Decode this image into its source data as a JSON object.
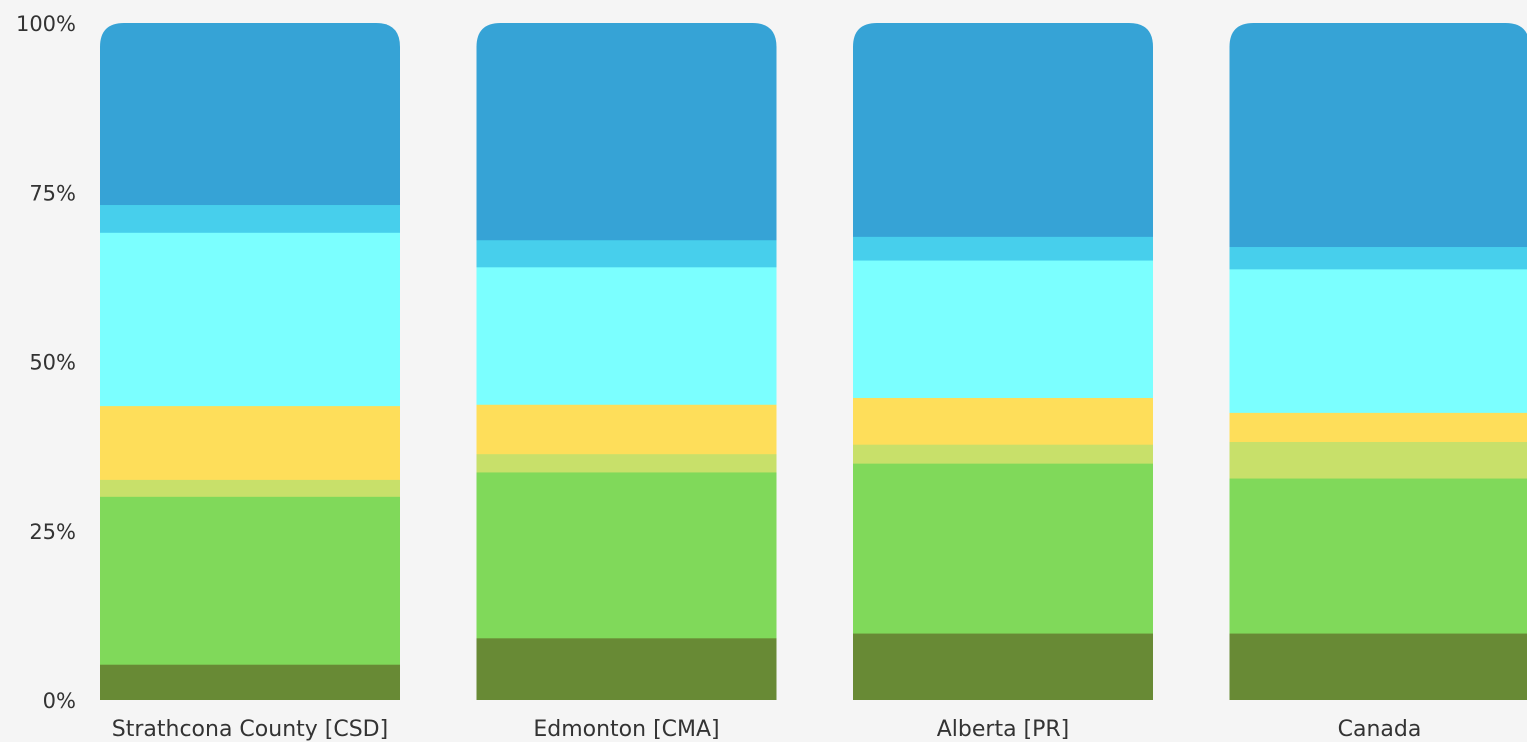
{
  "chart_data": {
    "type": "bar",
    "stacked": true,
    "orientation": "vertical",
    "normalized": true,
    "title": "",
    "xlabel": "",
    "ylabel": "",
    "ylim": [
      0,
      100
    ],
    "y_ticks": [
      {
        "value": 0,
        "label": "0%"
      },
      {
        "value": 25,
        "label": "25%"
      },
      {
        "value": 50,
        "label": "50%"
      },
      {
        "value": 75,
        "label": "75%"
      },
      {
        "value": 100,
        "label": "100%"
      }
    ],
    "grid": false,
    "legend": "none",
    "categories": [
      "Strathcona County [CSD]",
      "Edmonton [CMA]",
      "Alberta [PR]",
      "Canada"
    ],
    "series": [
      {
        "color": "#688a35",
        "values": [
          5.3,
          9.2,
          9.9,
          9.9
        ]
      },
      {
        "color": "#80d95a",
        "values": [
          24.8,
          24.5,
          25.1,
          22.9
        ]
      },
      {
        "color": "#c8e06a",
        "values": [
          2.5,
          2.7,
          2.8,
          5.4
        ]
      },
      {
        "color": "#fede5a",
        "values": [
          10.9,
          7.3,
          6.9,
          4.3
        ]
      },
      {
        "color": "#7bffff",
        "values": [
          25.6,
          20.3,
          20.3,
          21.2
        ]
      },
      {
        "color": "#47cfec",
        "values": [
          4.1,
          4.0,
          3.5,
          3.3
        ]
      },
      {
        "color": "#36a3d6",
        "values": [
          26.8,
          32.0,
          31.5,
          33.0
        ]
      }
    ]
  }
}
